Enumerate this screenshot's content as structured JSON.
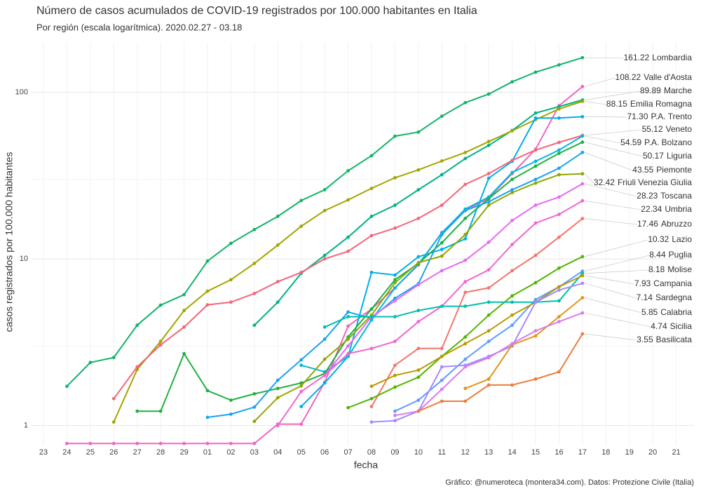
{
  "chart_data": {
    "type": "line",
    "title": "Número de casos acumulados de COVID-19 registrados por 100.000 habitantes en Italia",
    "subtitle": "Por región (escala logarítmica). 2020.02.27 - 03.18",
    "x_label": "fecha",
    "y_label": "casos registrados por 100.000 habitantes",
    "caption": "Gráfico: @numeroteca (montera34.com). Datos: Protezione Civile (Italia)",
    "log_scale": true,
    "grid": true,
    "ylim": [
      0.76,
      200
    ],
    "yticks": [
      1,
      10,
      100
    ],
    "categories": [
      "23",
      "24",
      "25",
      "26",
      "27",
      "28",
      "29",
      "01",
      "02",
      "03",
      "04",
      "05",
      "06",
      "07",
      "08",
      "09",
      "10",
      "11",
      "12",
      "13",
      "14",
      "15",
      "16",
      "17",
      "18",
      "19",
      "20",
      "21"
    ],
    "series": [
      {
        "name": "Lombardia",
        "color": "#12b36a",
        "values": [
          null,
          1.72,
          2.39,
          2.56,
          4.0,
          5.28,
          6.1,
          9.7,
          12.4,
          15.0,
          18.0,
          22.4,
          26.0,
          33.8,
          41.6,
          54.5,
          57.7,
          71.8,
          86.6,
          97.5,
          115.5,
          132,
          146,
          161.22,
          null,
          null,
          null,
          null
        ]
      },
      {
        "name": "Valle d'Aosta",
        "color": "#f066c0",
        "values": [
          null,
          0.78,
          0.78,
          0.78,
          0.78,
          0.78,
          0.78,
          0.78,
          0.78,
          0.78,
          1.02,
          1.02,
          1.82,
          3.95,
          5.0,
          6.7,
          9.2,
          14.4,
          19.5,
          23.2,
          32.5,
          45.5,
          83,
          108.22,
          null,
          null,
          null,
          null
        ]
      },
      {
        "name": "Marche",
        "color": "#00b386",
        "values": [
          null,
          null,
          null,
          null,
          null,
          null,
          null,
          null,
          null,
          4.0,
          5.5,
          8.2,
          10.5,
          13.5,
          18,
          21,
          26,
          32,
          40,
          48,
          59,
          75,
          82,
          89.89,
          null,
          null,
          null,
          null
        ]
      },
      {
        "name": "Emilia Romagna",
        "color": "#a3a500",
        "values": [
          null,
          null,
          null,
          1.05,
          2.17,
          3.2,
          4.9,
          6.4,
          7.5,
          9.4,
          12.1,
          15.7,
          19.5,
          22.6,
          26.5,
          30.7,
          34.2,
          38.7,
          43.5,
          50.6,
          58.7,
          68.5,
          79.4,
          88.15,
          null,
          null,
          null,
          null
        ]
      },
      {
        "name": "P.A. Trento",
        "color": "#00aee8",
        "values": [
          null,
          null,
          null,
          null,
          null,
          null,
          null,
          null,
          null,
          null,
          null,
          1.3,
          1.8,
          2.6,
          8.3,
          8.0,
          10.3,
          11.4,
          13.2,
          30.5,
          38.5,
          70,
          70,
          71.3,
          null,
          null,
          null,
          null
        ],
        "value_labels": [
          null,
          null,
          null,
          null,
          null,
          null,
          null,
          null,
          null,
          null,
          null,
          null,
          null,
          null,
          null,
          null,
          null,
          null,
          null,
          null,
          null,
          null,
          null,
          "71.30",
          null,
          null,
          null,
          null
        ]
      },
      {
        "name": "Veneto",
        "color": "#f2667a",
        "values": [
          null,
          null,
          null,
          1.45,
          2.25,
          3.05,
          3.9,
          5.3,
          5.5,
          6.2,
          7.3,
          8.3,
          10.0,
          11.1,
          13.8,
          15.3,
          17.5,
          21,
          28,
          32.5,
          39,
          45,
          50,
          55.12,
          null,
          null,
          null,
          null
        ]
      },
      {
        "name": "P.A. Bolzano",
        "color": "#00b8e0",
        "values": [
          null,
          null,
          null,
          null,
          null,
          null,
          null,
          null,
          null,
          null,
          null,
          2.3,
          2.1,
          2.6,
          4.3,
          6.7,
          9.3,
          14.3,
          19.9,
          23.5,
          33,
          38.5,
          45,
          54.59,
          null,
          null,
          null,
          null
        ]
      },
      {
        "name": "Liguria",
        "color": "#1fb040",
        "values": [
          null,
          null,
          null,
          null,
          1.22,
          1.22,
          2.7,
          1.62,
          1.42,
          1.55,
          1.67,
          1.8,
          2.05,
          3.4,
          5.0,
          7.5,
          9.4,
          12.5,
          17.5,
          23,
          30,
          36,
          43,
          50.17,
          null,
          null,
          null,
          null
        ]
      },
      {
        "name": "Piemonte",
        "color": "#1aa3f0",
        "values": [
          null,
          null,
          null,
          null,
          null,
          null,
          null,
          1.12,
          1.17,
          1.29,
          1.87,
          2.48,
          3.3,
          4.8,
          4.4,
          5.8,
          7.1,
          14.0,
          19.5,
          22,
          26,
          30,
          35,
          43.55,
          null,
          null,
          null,
          null
        ]
      },
      {
        "name": "Friuli Venezia Giulia",
        "color": "#8fa600",
        "values": [
          null,
          null,
          null,
          null,
          null,
          null,
          null,
          null,
          null,
          1.06,
          1.47,
          1.73,
          2.5,
          3.3,
          4.6,
          7.2,
          9.5,
          10.4,
          14,
          21,
          25,
          28.5,
          32,
          32.42,
          null,
          null,
          null,
          null
        ]
      },
      {
        "name": "Toscana",
        "color": "#e76bf3",
        "values": [
          null,
          null,
          null,
          null,
          null,
          null,
          null,
          null,
          null,
          null,
          null,
          null,
          2.0,
          3.0,
          4.5,
          5.6,
          7.0,
          8.5,
          9.8,
          12.6,
          17,
          21,
          23.5,
          28.23,
          null,
          null,
          null,
          null
        ]
      },
      {
        "name": "Umbria",
        "color": "#f067d0",
        "values": [
          null,
          null,
          null,
          null,
          null,
          null,
          null,
          null,
          null,
          null,
          1.0,
          1.6,
          2.0,
          2.7,
          2.9,
          3.2,
          4.2,
          5.2,
          7.3,
          8.6,
          12.2,
          16.4,
          18.5,
          22.34,
          null,
          null,
          null,
          null
        ]
      },
      {
        "name": "Abruzzo",
        "color": "#f4766a",
        "values": [
          null,
          null,
          null,
          null,
          null,
          null,
          null,
          null,
          null,
          null,
          null,
          null,
          null,
          null,
          1.3,
          2.3,
          2.9,
          2.9,
          6.3,
          6.7,
          8.5,
          10.5,
          13.5,
          17.46,
          null,
          null,
          null,
          null
        ]
      },
      {
        "name": "Lazio",
        "color": "#53b400",
        "values": [
          null,
          null,
          null,
          null,
          null,
          null,
          null,
          null,
          null,
          null,
          null,
          null,
          null,
          1.28,
          1.45,
          1.7,
          1.95,
          2.6,
          3.4,
          4.6,
          6,
          7.2,
          8.8,
          10.32,
          null,
          null,
          null,
          null
        ]
      },
      {
        "name": "Puglia",
        "color": "#619cff",
        "values": [
          null,
          null,
          null,
          null,
          null,
          null,
          null,
          null,
          null,
          null,
          null,
          null,
          null,
          null,
          null,
          1.22,
          1.42,
          1.87,
          2.5,
          3.2,
          4.0,
          5.7,
          6.8,
          8.44,
          null,
          null,
          null,
          null
        ]
      },
      {
        "name": "Molise",
        "color": "#00bfb0",
        "values": [
          null,
          null,
          null,
          null,
          null,
          null,
          null,
          null,
          null,
          null,
          null,
          null,
          3.9,
          4.5,
          4.5,
          4.5,
          4.9,
          5.2,
          5.2,
          5.5,
          5.5,
          5.5,
          5.6,
          8.18,
          null,
          null,
          null,
          null
        ]
      },
      {
        "name": "Campania",
        "color": "#b89a00",
        "values": [
          null,
          null,
          null,
          null,
          null,
          null,
          null,
          null,
          null,
          null,
          null,
          null,
          null,
          null,
          1.72,
          2.0,
          2.15,
          2.6,
          3.1,
          3.7,
          4.6,
          5.5,
          6.8,
          7.93,
          null,
          null,
          null,
          null
        ]
      },
      {
        "name": "Sardegna",
        "color": "#a58aff",
        "values": [
          null,
          null,
          null,
          null,
          null,
          null,
          null,
          null,
          null,
          null,
          null,
          null,
          null,
          null,
          1.05,
          1.07,
          1.22,
          2.25,
          2.3,
          2.6,
          3.0,
          5.5,
          6.5,
          7.14,
          null,
          null,
          null,
          null
        ]
      },
      {
        "name": "Calabria",
        "color": "#e2951a",
        "values": [
          null,
          null,
          null,
          null,
          null,
          null,
          null,
          null,
          null,
          null,
          null,
          null,
          null,
          null,
          null,
          null,
          null,
          null,
          1.67,
          1.9,
          3.05,
          3.45,
          4.5,
          5.85,
          null,
          null,
          null,
          null
        ]
      },
      {
        "name": "Sicilia",
        "color": "#d77cf0",
        "values": [
          null,
          null,
          null,
          null,
          null,
          null,
          null,
          null,
          null,
          null,
          null,
          null,
          null,
          null,
          null,
          1.15,
          1.22,
          1.65,
          2.25,
          2.55,
          3.1,
          3.7,
          4.2,
          4.74,
          null,
          null,
          null,
          null
        ]
      },
      {
        "name": "Basilicata",
        "color": "#ec7d40",
        "values": [
          null,
          null,
          null,
          null,
          null,
          null,
          null,
          null,
          null,
          null,
          null,
          null,
          null,
          null,
          null,
          null,
          1.22,
          1.4,
          1.4,
          1.75,
          1.75,
          1.9,
          2.1,
          3.55,
          null,
          null,
          null,
          null
        ]
      }
    ]
  }
}
